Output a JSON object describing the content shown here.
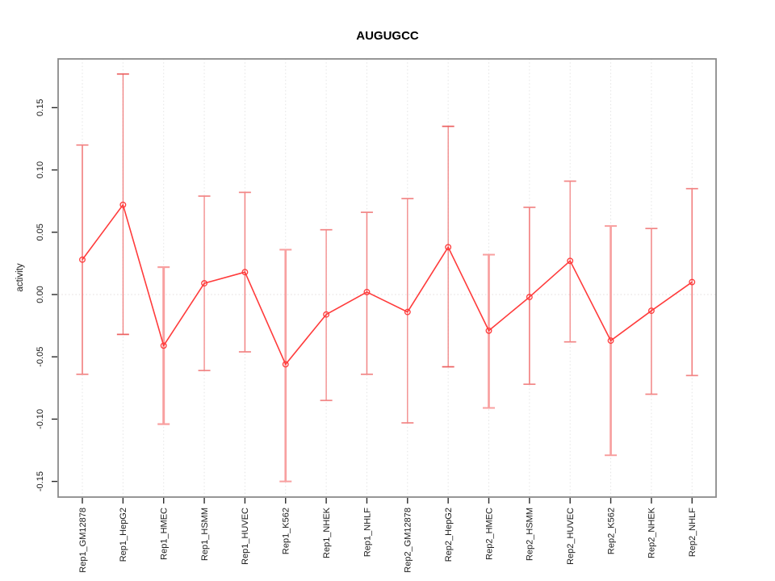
{
  "window": {
    "background": "#ffffff"
  },
  "chart_data": {
    "type": "line",
    "title": "AUGUGCC",
    "xlabel": "",
    "ylabel": "activity",
    "categories": [
      "Rep1_GM12878",
      "Rep1_HepG2",
      "Rep1_HMEC",
      "Rep1_HSMM",
      "Rep1_HUVEC",
      "Rep1_K562",
      "Rep1_NHEK",
      "Rep1_NHLF",
      "Rep2_GM12878",
      "Rep2_HepG2",
      "Rep2_HMEC",
      "Rep2_HSMM",
      "Rep2_HUVEC",
      "Rep2_K562",
      "Rep2_NHEK",
      "Rep2_NHLF"
    ],
    "series": [
      {
        "name": "activity",
        "values": [
          0.028,
          0.072,
          -0.041,
          0.009,
          0.018,
          -0.056,
          -0.016,
          0.002,
          -0.014,
          0.038,
          -0.029,
          -0.002,
          0.027,
          -0.037,
          -0.013,
          0.01
        ],
        "error_upper": [
          0.12,
          0.177,
          0.022,
          0.079,
          0.082,
          0.036,
          0.052,
          0.066,
          0.077,
          0.135,
          0.032,
          0.07,
          0.091,
          0.055,
          0.053,
          0.085
        ],
        "error_lower": [
          -0.064,
          -0.032,
          -0.104,
          -0.061,
          -0.046,
          -0.15,
          -0.085,
          -0.064,
          -0.103,
          -0.058,
          -0.091,
          -0.072,
          -0.038,
          -0.129,
          -0.08,
          -0.065
        ]
      }
    ],
    "error_bar_widths": [
      1.7,
      1.0,
      3.0,
      1.3,
      1.5,
      2.7,
      1.3,
      1.5,
      1.3,
      1.0,
      2.7,
      1.7,
      1.3,
      2.7,
      1.5,
      1.7
    ],
    "yticks": [
      -0.15,
      -0.1,
      -0.05,
      0.0,
      0.05,
      0.1,
      0.15
    ],
    "ytick_labels": [
      "-0.15",
      "-0.10",
      "-0.05",
      "0.00",
      "0.05",
      "0.10",
      "0.15"
    ],
    "ylim": [
      -0.163,
      0.189
    ],
    "grid": "vertical dotted gridline per category; dotted horizontal line at zero",
    "legend": "none",
    "marker": "open-circle",
    "colors": {
      "line": "#ff3b3b",
      "point": "#ff3b3b",
      "error_bar_light": "#f8a0a0",
      "error_bar_mid": "#f28585",
      "error_bar_dark": "#ec6060",
      "grid": "#e4e4e4",
      "zero_line": "#e3dcdc",
      "box": "#8a8a8a",
      "tick": "#2a2a2a",
      "text": "#1a1a1a",
      "title": "#000000"
    }
  }
}
